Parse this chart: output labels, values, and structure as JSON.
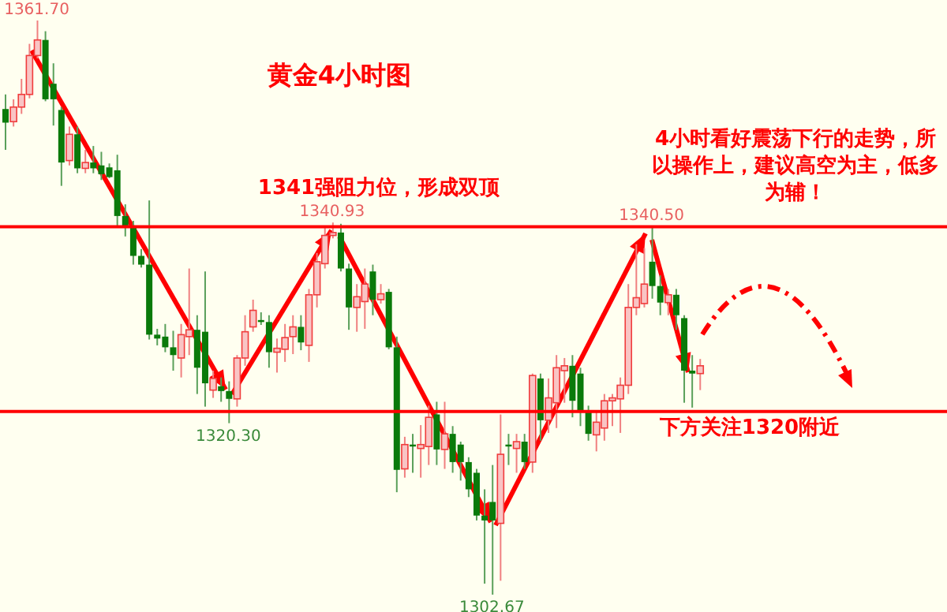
{
  "chart_data": {
    "type": "candlestick",
    "title": "黄金4小时图",
    "categories": [
      null,
      null,
      null,
      null,
      null,
      null,
      null,
      null,
      null,
      null,
      null,
      null,
      null,
      null,
      null,
      null,
      null,
      null,
      null,
      null,
      null,
      null,
      null,
      null,
      null,
      null,
      null,
      null,
      null,
      null,
      null,
      null,
      null,
      null,
      null,
      null,
      null,
      null,
      null,
      null,
      null,
      null,
      null,
      null,
      null,
      null,
      null,
      null,
      null,
      null,
      null,
      null,
      null,
      null,
      null,
      null,
      null,
      null,
      null,
      null,
      null,
      null,
      null,
      null,
      null,
      null,
      null,
      null,
      null,
      null,
      null,
      null,
      null,
      null,
      null,
      null,
      null,
      null,
      null,
      null,
      null,
      null,
      null,
      null,
      null,
      null,
      null,
      null
    ],
    "ohlc": [
      [
        1352.6,
        1354.1,
        1348.4,
        1351.2
      ],
      [
        1351.3,
        1353.6,
        1350.8,
        1352.8
      ],
      [
        1352.8,
        1355.7,
        1352.1,
        1354.1
      ],
      [
        1354.1,
        1359.3,
        1353.7,
        1358.1
      ],
      [
        1358.1,
        1361.7,
        1357.8,
        1359.7
      ],
      [
        1359.7,
        1360.6,
        1353.4,
        1353.6
      ],
      [
        1355.2,
        1357.3,
        1350.9,
        1353.6
      ],
      [
        1352.5,
        1352.8,
        1344.7,
        1347.1
      ],
      [
        1347.3,
        1350.8,
        1346.8,
        1350.0
      ],
      [
        1350.0,
        1350.8,
        1346.0,
        1346.5
      ],
      [
        1346.5,
        1348.4,
        1346.0,
        1347.1
      ],
      [
        1347.1,
        1348.8,
        1346.0,
        1346.5
      ],
      [
        1346.8,
        1348.2,
        1345.3,
        1345.9
      ],
      [
        1346.6,
        1347.0,
        1345.5,
        1345.6
      ],
      [
        1346.3,
        1347.9,
        1340.4,
        1341.6
      ],
      [
        1341.6,
        1342.8,
        1339.5,
        1340.6
      ],
      [
        1340.6,
        1341.1,
        1336.6,
        1337.5
      ],
      [
        1337.5,
        1338.2,
        1336.3,
        1336.6
      ],
      [
        1336.6,
        1343.2,
        1328.9,
        1329.4
      ],
      [
        1329.4,
        1330.0,
        1328.3,
        1329.0
      ],
      [
        1329.2,
        1330.5,
        1327.6,
        1328.1
      ],
      [
        1328.1,
        1329.8,
        1325.7,
        1327.3
      ],
      [
        1327.0,
        1330.5,
        1325.0,
        1329.4
      ],
      [
        1329.2,
        1336.2,
        1327.3,
        1329.9
      ],
      [
        1329.9,
        1331.4,
        1323.3,
        1326.0
      ],
      [
        1329.7,
        1335.9,
        1322.0,
        1324.4
      ],
      [
        1323.7,
        1325.7,
        1322.9,
        1324.9
      ],
      [
        1324.1,
        1325.0,
        1322.5,
        1323.6
      ],
      [
        1323.6,
        1324.6,
        1320.3,
        1322.8
      ],
      [
        1322.8,
        1327.3,
        1322.0,
        1327.0
      ],
      [
        1327.0,
        1331.4,
        1326.2,
        1329.7
      ],
      [
        1330.2,
        1333.0,
        1329.7,
        1331.9
      ],
      [
        1330.9,
        1331.7,
        1330.4,
        1330.7
      ],
      [
        1330.7,
        1331.4,
        1326.0,
        1327.6
      ],
      [
        1327.6,
        1329.0,
        1325.5,
        1328.0
      ],
      [
        1327.9,
        1330.5,
        1326.6,
        1329.1
      ],
      [
        1329.2,
        1331.4,
        1327.4,
        1330.2
      ],
      [
        1330.2,
        1331.4,
        1327.8,
        1328.6
      ],
      [
        1328.3,
        1334.1,
        1326.6,
        1333.5
      ],
      [
        1333.5,
        1337.8,
        1332.2,
        1336.9
      ],
      [
        1336.7,
        1340.6,
        1336.2,
        1339.6
      ],
      [
        1339.6,
        1340.93,
        1339.3,
        1339.9
      ],
      [
        1339.9,
        1340.8,
        1335.9,
        1336.2
      ],
      [
        1336.2,
        1336.7,
        1329.9,
        1332.2
      ],
      [
        1332.2,
        1334.6,
        1329.7,
        1333.3
      ],
      [
        1332.8,
        1336.2,
        1330.0,
        1334.6
      ],
      [
        1335.9,
        1336.6,
        1331.4,
        1333.0
      ],
      [
        1333.0,
        1334.6,
        1332.6,
        1333.6
      ],
      [
        1333.8,
        1334.1,
        1327.9,
        1328.1
      ],
      [
        1328.1,
        1329.2,
        1313.2,
        1315.5
      ],
      [
        1315.6,
        1318.9,
        1314.7,
        1318.1
      ],
      [
        1318.1,
        1319.2,
        1315.2,
        1317.9
      ],
      [
        1317.7,
        1320.1,
        1314.7,
        1318.1
      ],
      [
        1317.9,
        1322.1,
        1316.0,
        1320.9
      ],
      [
        1321.2,
        1322.5,
        1316.0,
        1317.6
      ],
      [
        1317.6,
        1322.5,
        1315.6,
        1319.2
      ],
      [
        1319.2,
        1320.0,
        1315.2,
        1316.3
      ],
      [
        1318.1,
        1318.4,
        1314.4,
        1316.3
      ],
      [
        1316.3,
        1316.8,
        1312.7,
        1313.5
      ],
      [
        1315.2,
        1315.6,
        1310.3,
        1310.8
      ],
      [
        1310.8,
        1313.5,
        1303.8,
        1310.3
      ],
      [
        1312.2,
        1316.0,
        1302.67,
        1310.3
      ],
      [
        1310.0,
        1321.2,
        1304.1,
        1317.1
      ],
      [
        1318.1,
        1319.2,
        1316.0,
        1317.9
      ],
      [
        1317.7,
        1319.2,
        1315.2,
        1318.4
      ],
      [
        1318.4,
        1319.2,
        1315.6,
        1316.3
      ],
      [
        1316.3,
        1325.4,
        1315.2,
        1325.2
      ],
      [
        1324.9,
        1325.4,
        1318.5,
        1320.6
      ],
      [
        1320.6,
        1324.9,
        1319.3,
        1322.9
      ],
      [
        1322.4,
        1327.3,
        1319.8,
        1326.0
      ],
      [
        1325.7,
        1327.0,
        1322.4,
        1326.2
      ],
      [
        1326.2,
        1327.3,
        1320.9,
        1322.6
      ],
      [
        1325.4,
        1326.0,
        1320.0,
        1321.6
      ],
      [
        1321.4,
        1322.1,
        1318.5,
        1319.2
      ],
      [
        1319.1,
        1321.4,
        1317.4,
        1320.4
      ],
      [
        1319.8,
        1323.3,
        1318.5,
        1322.6
      ],
      [
        1322.6,
        1323.3,
        1320.0,
        1322.9
      ],
      [
        1322.8,
        1325.0,
        1319.3,
        1324.2
      ],
      [
        1324.2,
        1334.6,
        1323.3,
        1332.2
      ],
      [
        1332.2,
        1338.7,
        1331.4,
        1333.2
      ],
      [
        1332.6,
        1338.3,
        1332.2,
        1334.6
      ],
      [
        1336.9,
        1340.5,
        1333.1,
        1334.4
      ],
      [
        1334.4,
        1335.5,
        1331.4,
        1332.7
      ],
      [
        1332.7,
        1334.1,
        1331.4,
        1333.5
      ],
      [
        1333.5,
        1334.1,
        1329.9,
        1331.4
      ],
      [
        1331.1,
        1331.4,
        1322.4,
        1325.7
      ],
      [
        1325.7,
        1327.3,
        1321.9,
        1325.4
      ],
      [
        1325.4,
        1326.9,
        1323.7,
        1326.2
      ]
    ],
    "ref_lines": [
      {
        "axis": "y",
        "value": 1340.5,
        "color": "#ff0000"
      },
      {
        "axis": "y",
        "value": 1321.5,
        "color": "#ff0000"
      }
    ],
    "annotations": [
      {
        "text": "1361.70",
        "y": 1361.7
      },
      {
        "text": "1340.93",
        "y": 1340.93
      },
      {
        "text": "1320.30",
        "y": 1320.3
      },
      {
        "text": "1340.50",
        "y": 1340.5
      },
      {
        "text": "1302.67",
        "y": 1302.67
      },
      "1341强阻力位，形成双顶",
      "4小时看好震荡下行的走势，所以操作上，建议高空为主，低多为辅！",
      "下方关注1320附近"
    ]
  }
}
